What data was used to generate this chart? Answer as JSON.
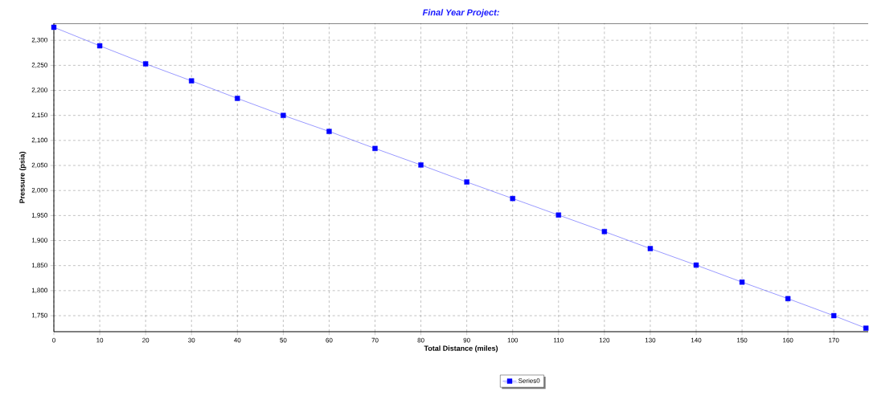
{
  "chart_data": {
    "type": "line",
    "title": "Final Year Project:",
    "xlabel": "Total Distance (miles)",
    "ylabel": "Pressure (psia)",
    "x": [
      0,
      10,
      20,
      30,
      40,
      50,
      60,
      70,
      80,
      90,
      100,
      110,
      120,
      130,
      140,
      150,
      160,
      170,
      177
    ],
    "series": [
      {
        "name": "Series0",
        "color": "#0000ff",
        "values": [
          2326,
          2289,
          2253,
          2219,
          2184,
          2150,
          2118,
          2084,
          2051,
          2017,
          1984,
          1951,
          1918,
          1884,
          1851,
          1817,
          1784,
          1750,
          1725
        ]
      }
    ],
    "xlim": [
      0,
      177.5
    ],
    "ylim": [
      1718,
      2334
    ],
    "xticks": [
      0,
      10,
      20,
      30,
      40,
      50,
      60,
      70,
      80,
      90,
      100,
      110,
      120,
      130,
      140,
      150,
      160,
      170
    ],
    "yticks": [
      {
        "value": 1750,
        "label": "1,750"
      },
      {
        "value": 1800,
        "label": "1,800"
      },
      {
        "value": 1850,
        "label": "1,850"
      },
      {
        "value": 1900,
        "label": "1,900"
      },
      {
        "value": 1950,
        "label": "1,950"
      },
      {
        "value": 2000,
        "label": "2,000"
      },
      {
        "value": 2050,
        "label": "2,050"
      },
      {
        "value": 2100,
        "label": "2,100"
      },
      {
        "value": 2150,
        "label": "2,150"
      },
      {
        "value": 2200,
        "label": "2,200"
      },
      {
        "value": 2250,
        "label": "2,250"
      },
      {
        "value": 2300,
        "label": "2,300"
      }
    ],
    "grid": true,
    "legend": "bottom",
    "marker": "square",
    "line_style": "solid"
  }
}
